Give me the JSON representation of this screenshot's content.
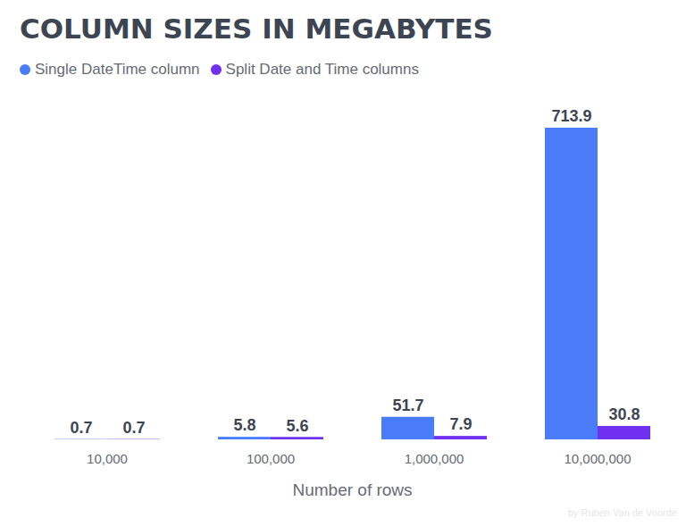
{
  "chart_data": {
    "type": "bar",
    "title": "COLUMN SIZES IN MEGABYTES",
    "x_label": "Number of rows",
    "caption": "by Ruben Van de Voorde",
    "categories": [
      "10,000",
      "100,000",
      "1,000,000",
      "10,000,000"
    ],
    "series": [
      {
        "name": "Single DateTime column",
        "color": "#4a7cf7",
        "values": [
          0.7,
          5.8,
          51.7,
          713.9
        ]
      },
      {
        "name": "Split Date and Time columns",
        "color": "#7030f0",
        "values": [
          0.7,
          5.6,
          7.9,
          30.8
        ]
      }
    ],
    "ylim": [
      0,
      713.9
    ],
    "data_labels": true,
    "tick_labels": "x",
    "grid": false,
    "legend": "top-left"
  }
}
